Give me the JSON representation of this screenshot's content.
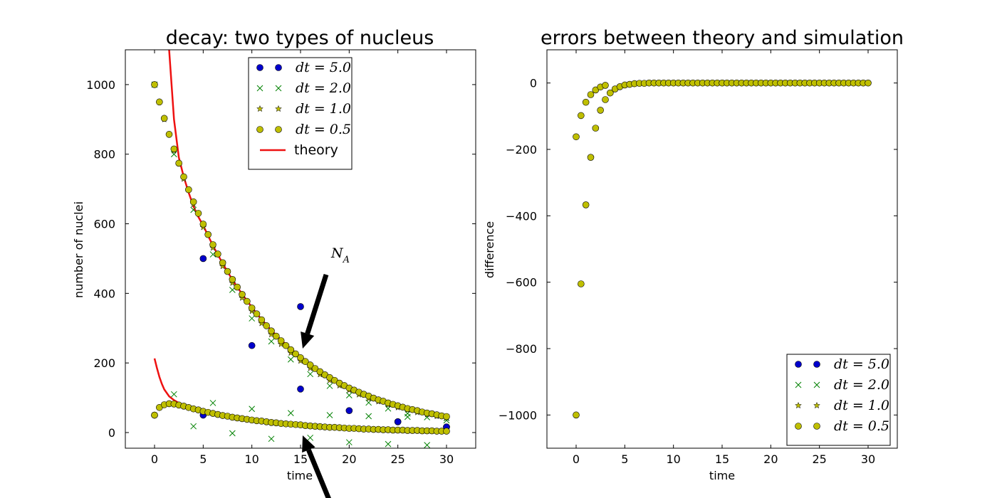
{
  "chart_data": [
    {
      "type": "scatter",
      "title": "decay: two types of nucleus",
      "xlabel": "time",
      "ylabel": "number of nuclei",
      "xlim": [
        -3,
        33
      ],
      "ylim": [
        -45,
        1100
      ],
      "xticks": [
        "0",
        "5",
        "10",
        "15",
        "20",
        "25",
        "30"
      ],
      "yticks": [
        "0",
        "200",
        "400",
        "600",
        "800",
        "1000"
      ],
      "legend": "top-center",
      "annotation": "N_A",
      "annotation_text_main": "N",
      "annotation_text_sub": "A",
      "series": [
        {
          "name": "dt=5.0",
          "legend_label": "dt = 5.0",
          "marker": "circle",
          "color": "#0000cc",
          "x": [
            0,
            5,
            10,
            15,
            20,
            25,
            30,
            5,
            15,
            25,
            30
          ],
          "y": [
            50,
            500,
            250,
            362,
            63,
            31,
            16,
            50,
            125,
            31,
            16
          ]
        },
        {
          "name": "dt=2.0",
          "legend_label": "dt = 2.0",
          "marker": "x",
          "color": "#008000",
          "x": [
            0,
            2,
            4,
            6,
            8,
            10,
            12,
            14,
            16,
            18,
            20,
            22,
            24,
            26,
            28,
            30,
            2,
            4,
            6,
            8,
            10,
            12,
            14,
            16,
            18,
            20,
            22,
            24,
            26,
            28,
            30
          ],
          "y": [
            1000,
            800,
            640,
            512,
            410,
            328,
            262,
            210,
            168,
            134,
            107,
            86,
            69,
            55,
            44,
            35,
            110,
            18,
            85,
            -2,
            68,
            -18,
            56,
            -15,
            50,
            -28,
            47,
            -33,
            45,
            -36,
            42
          ]
        },
        {
          "name": "dt=1.0",
          "legend_label": "dt = 1.0",
          "marker": "star",
          "color": "#bfbf00",
          "x": [
            0,
            1,
            2,
            3,
            4,
            5,
            6,
            7,
            8,
            9,
            10,
            11,
            12,
            13,
            14,
            15,
            16,
            17,
            18,
            19,
            20,
            21,
            22,
            23,
            24,
            25,
            26,
            27,
            28,
            29,
            30
          ],
          "y": [
            1000,
            900,
            810,
            729,
            656,
            590,
            531,
            478,
            430,
            387,
            349,
            314,
            282,
            254,
            229,
            206,
            185,
            167,
            150,
            135,
            122,
            109,
            98,
            89,
            80,
            72,
            65,
            58,
            52,
            47,
            42
          ]
        },
        {
          "name": "dt=0.5",
          "legend_label": "dt = 0.5",
          "marker": "circle",
          "color": "#bfbf00",
          "x": [
            0,
            0.5,
            1,
            1.5,
            2,
            2.5,
            3,
            3.5,
            4,
            4.5,
            5,
            5.5,
            6,
            6.5,
            7,
            7.5,
            8,
            8.5,
            9,
            9.5,
            10,
            10.5,
            11,
            11.5,
            12,
            12.5,
            13,
            13.5,
            14,
            14.5,
            15,
            15.5,
            16,
            16.5,
            17,
            17.5,
            18,
            18.5,
            19,
            19.5,
            20,
            20.5,
            21,
            21.5,
            22,
            22.5,
            23,
            23.5,
            24,
            24.5,
            25,
            25.5,
            26,
            26.5,
            27,
            27.5,
            28,
            28.5,
            29,
            29.5,
            30
          ],
          "y": [
            1000,
            950,
            903,
            857,
            815,
            774,
            735,
            698,
            663,
            630,
            599,
            569,
            540,
            513,
            488,
            463,
            440,
            418,
            397,
            377,
            358,
            341,
            324,
            307,
            292,
            277,
            264,
            250,
            238,
            226,
            215,
            204,
            194,
            184,
            175,
            166,
            158,
            150,
            142,
            135,
            128,
            122,
            116,
            110,
            105,
            99,
            94,
            90,
            85,
            81,
            77,
            73,
            69,
            66,
            63,
            59,
            56,
            54,
            51,
            48,
            46
          ]
        },
        {
          "name": "dt=0.5 (N_B)",
          "legend_label": "",
          "marker": "circle",
          "color": "#bfbf00",
          "x": [
            0,
            0.5,
            1,
            1.5,
            2,
            2.5,
            3,
            3.5,
            4,
            4.5,
            5,
            5.5,
            6,
            6.5,
            7,
            7.5,
            8,
            8.5,
            9,
            9.5,
            10,
            10.5,
            11,
            11.5,
            12,
            12.5,
            13,
            13.5,
            14,
            14.5,
            15,
            15.5,
            16,
            16.5,
            17,
            17.5,
            18,
            18.5,
            19,
            19.5,
            20,
            20.5,
            21,
            21.5,
            22,
            22.5,
            23,
            23.5,
            24,
            24.5,
            25,
            25.5,
            26,
            26.5,
            27,
            27.5,
            28,
            28.5,
            29,
            29.5,
            30
          ],
          "y": [
            50,
            72,
            80,
            83,
            82,
            79,
            76,
            72,
            68,
            65,
            61,
            58,
            55,
            52,
            49,
            47,
            44,
            42,
            40,
            38,
            36,
            34,
            33,
            31,
            29,
            28,
            26,
            25,
            24,
            23,
            22,
            20,
            19,
            18,
            17,
            16,
            15,
            15,
            14,
            13,
            12,
            12,
            11,
            10,
            10,
            9,
            9,
            8,
            8,
            7,
            7,
            7,
            6,
            6,
            6,
            5,
            5,
            5,
            4,
            4,
            4
          ]
        },
        {
          "name": "theory",
          "legend_label": "theory",
          "marker": "line",
          "color": "#ee1111",
          "x": [
            1.5,
            2,
            2.5,
            3,
            3.5,
            4,
            4.5,
            5,
            6,
            7,
            8,
            9,
            10,
            11,
            12,
            13,
            14,
            15,
            16,
            17,
            18,
            19,
            20,
            21,
            22,
            23,
            24,
            25,
            26,
            27,
            28,
            29,
            30
          ],
          "y": [
            1100,
            900,
            790,
            735,
            690,
            650,
            620,
            595,
            537,
            486,
            439,
            398,
            360,
            325,
            294,
            266,
            241,
            218,
            197,
            178,
            161,
            146,
            132,
            119,
            108,
            98,
            88,
            80,
            72,
            65,
            59,
            54,
            48
          ]
        },
        {
          "name": "theory (N_B)",
          "legend_label": "",
          "marker": "line",
          "color": "#ee1111",
          "x": [
            0,
            0.25,
            0.5,
            0.75,
            1,
            1.5,
            2,
            2.5,
            3,
            4,
            5,
            6,
            7,
            8,
            9,
            10,
            12,
            14,
            16,
            18,
            20,
            22,
            24,
            26,
            28,
            30
          ],
          "y": [
            213,
            185,
            160,
            140,
            124,
            104,
            93,
            85,
            79,
            70,
            63,
            56,
            51,
            46,
            41,
            37,
            30,
            25,
            20,
            16,
            13,
            11,
            9,
            7,
            6,
            5
          ]
        }
      ]
    },
    {
      "type": "scatter",
      "title": "errors between theory and simulation",
      "xlabel": "time",
      "ylabel": "difference",
      "xlim": [
        -3,
        33
      ],
      "ylim": [
        -1100,
        100
      ],
      "xticks": [
        "0",
        "5",
        "10",
        "15",
        "20",
        "25",
        "30"
      ],
      "yticks": [
        "0",
        "−200",
        "−400",
        "−600",
        "−800",
        "−1000"
      ],
      "legend": "lower-right",
      "series": [
        {
          "name": "dt=0.5",
          "marker": "circle",
          "color": "#bfbf00",
          "x": [
            0,
            0,
            0.5,
            0.5,
            1,
            1,
            1.5,
            1.5,
            2,
            2,
            2.5,
            2.5,
            3,
            3,
            3.5,
            4,
            4.5,
            5,
            5.5,
            6,
            6.5,
            7,
            7.5,
            8,
            8.5,
            9,
            9.5,
            10,
            10.5,
            11,
            11.5,
            12,
            12.5,
            13,
            13.5,
            14,
            14.5,
            15,
            15.5,
            16,
            16.5,
            17,
            17.5,
            18,
            18.5,
            19,
            19.5,
            20,
            20.5,
            21,
            21.5,
            22,
            22.5,
            23,
            23.5,
            24,
            24.5,
            25,
            25.5,
            26,
            26.5,
            27,
            27.5,
            28,
            28.5,
            29,
            29.5,
            30
          ],
          "y": [
            -1000,
            -162,
            -605,
            -98,
            -367,
            -58,
            -224,
            -35,
            -136,
            -21,
            -82,
            -12,
            -50,
            -7,
            -30,
            -18,
            -11,
            -6,
            -4,
            -2,
            -1,
            -1,
            0,
            0,
            0,
            0,
            0,
            0,
            0,
            0,
            0,
            0,
            0,
            0,
            0,
            0,
            0,
            0,
            0,
            0,
            0,
            0,
            0,
            0,
            0,
            0,
            0,
            0,
            0,
            0,
            0,
            0,
            0,
            0,
            0,
            0,
            0,
            0,
            0,
            0,
            0,
            0,
            0,
            0,
            0,
            0,
            0,
            0
          ]
        }
      ],
      "legend_entries": [
        {
          "label": "dt = 5.0",
          "marker": "circle",
          "color": "#0000cc"
        },
        {
          "label": "dt = 2.0",
          "marker": "x",
          "color": "#008000"
        },
        {
          "label": "dt = 1.0",
          "marker": "star",
          "color": "#bfbf00"
        },
        {
          "label": "dt = 0.5",
          "marker": "circle",
          "color": "#bfbf00"
        }
      ]
    }
  ]
}
